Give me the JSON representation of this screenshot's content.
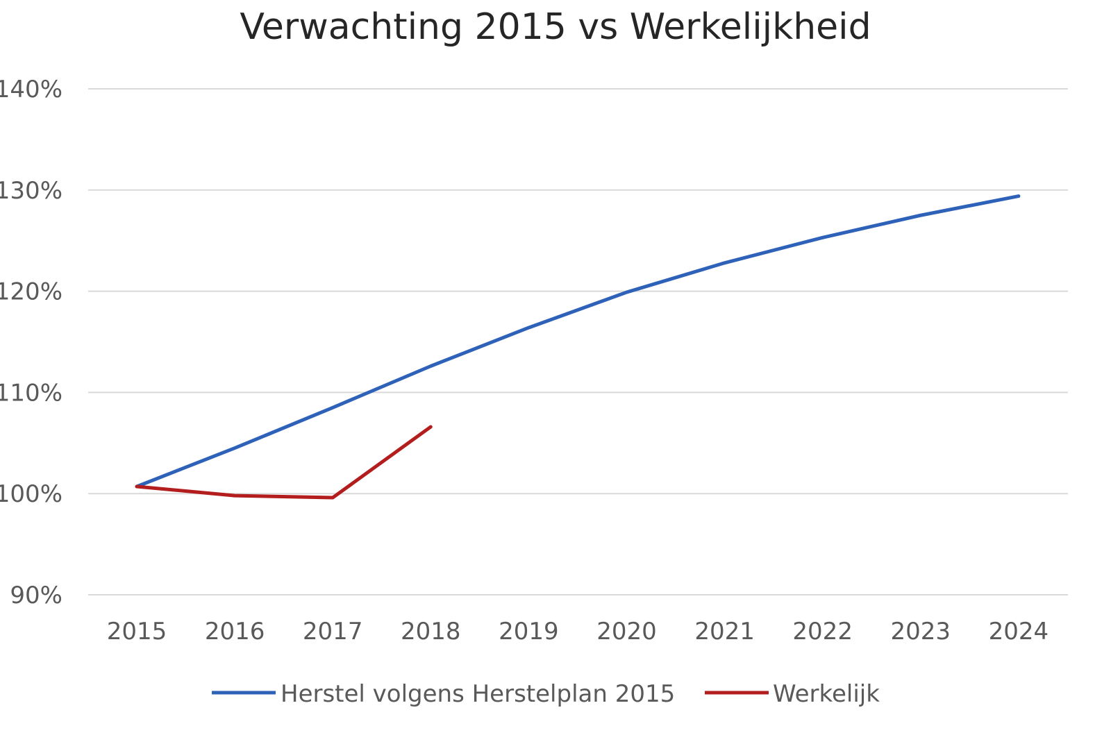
{
  "chart_data": {
    "type": "line",
    "title": "Verwachting 2015 vs Werkelijkheid",
    "xlabel": "",
    "ylabel": "",
    "x": [
      "2015",
      "2016",
      "2017",
      "2018",
      "2019",
      "2020",
      "2021",
      "2022",
      "2023",
      "2024"
    ],
    "yticks": [
      "140%",
      "130%",
      "120%",
      "110%",
      "100%",
      "90%"
    ],
    "ylim": [
      90,
      140
    ],
    "grid": true,
    "legend_position": "bottom",
    "series": [
      {
        "name": "Herstel volgens Herstelplan 2015",
        "color": "#2e62b9",
        "values": [
          100.7,
          104.5,
          108.5,
          112.6,
          116.4,
          119.9,
          122.8,
          125.3,
          127.5,
          129.4
        ]
      },
      {
        "name": "Werkelijk",
        "color": "#b31d1d",
        "values": [
          100.7,
          99.8,
          99.6,
          106.6,
          null,
          null,
          null,
          null,
          null,
          null
        ]
      }
    ]
  }
}
